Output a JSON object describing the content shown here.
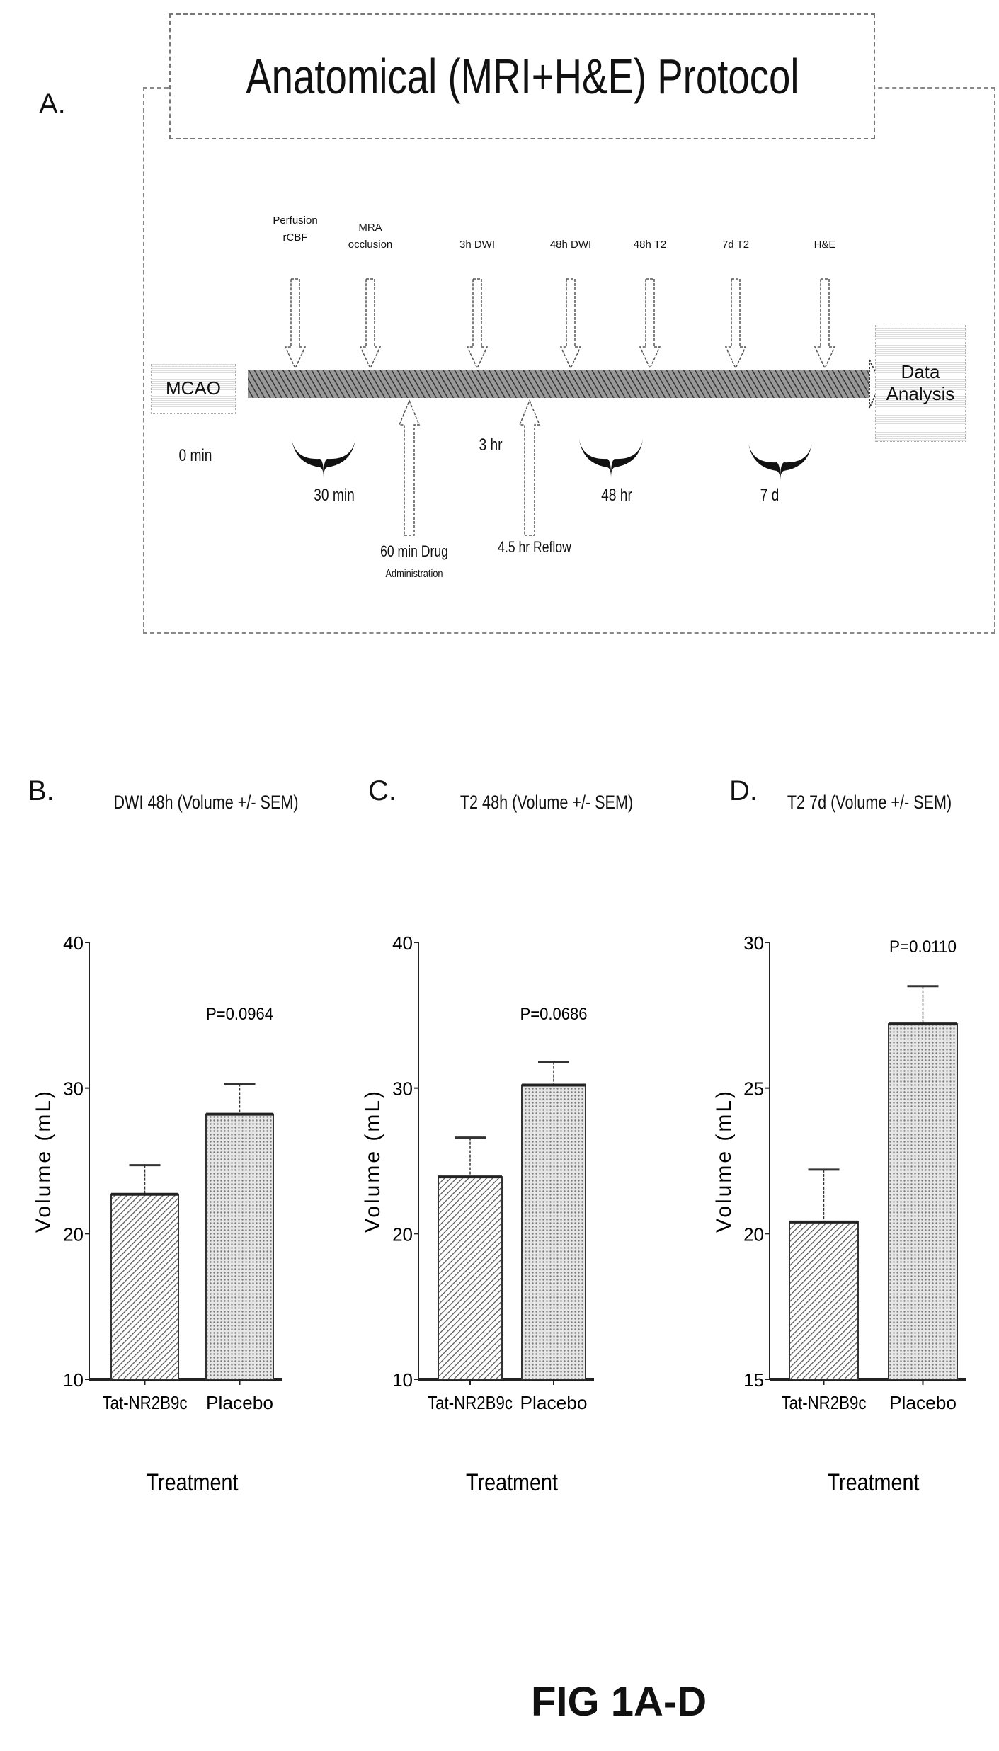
{
  "panel_a": {
    "letter": "A.",
    "title": "Anatomical (MRI+H&E) Protocol",
    "start_box": "MCAO",
    "end_box_line1": "Data",
    "end_box_line2": "Analysis",
    "start_time": "0 min",
    "top_events": [
      {
        "line1": "Perfusion",
        "line2": "rCBF"
      },
      {
        "line1": "MRA",
        "line2": "occlusion"
      },
      {
        "line1": "3h DWI",
        "line2": ""
      },
      {
        "line1": "48h DWI",
        "line2": ""
      },
      {
        "line1": "48h T2",
        "line2": ""
      },
      {
        "line1": "7d T2",
        "line2": ""
      },
      {
        "line1": "H&E",
        "line2": ""
      }
    ],
    "intervals": [
      "30 min",
      "48 hr",
      "7 d"
    ],
    "time_3hr": "3 hr",
    "bottom_events": [
      {
        "line1": "60 min Drug",
        "line2": "Administration"
      },
      {
        "line1": "4.5 hr Reflow",
        "line2": ""
      }
    ]
  },
  "chart_data": [
    {
      "letter": "B.",
      "type": "bar",
      "title": "DWI 48h (Volume +/- SEM)",
      "categories": [
        "Tat-NR2B9c",
        "Placebo"
      ],
      "values": [
        22.7,
        28.2
      ],
      "sem_upper": [
        24.7,
        30.3
      ],
      "ylim": [
        10,
        40
      ],
      "yticks": [
        "10",
        "20",
        "30",
        "40"
      ],
      "ylabel": "Volume (mL)",
      "xlabel": "Treatment",
      "annotation": "P=0.0964"
    },
    {
      "letter": "C.",
      "type": "bar",
      "title": "T2 48h (Volume +/- SEM)",
      "categories": [
        "Tat-NR2B9c",
        "Placebo"
      ],
      "values": [
        23.9,
        30.2
      ],
      "sem_upper": [
        26.6,
        31.8
      ],
      "ylim": [
        10,
        40
      ],
      "yticks": [
        "10",
        "20",
        "30",
        "40"
      ],
      "ylabel": "Volume (mL)",
      "xlabel": "Treatment",
      "annotation": "P=0.0686"
    },
    {
      "letter": "D.",
      "type": "bar",
      "title": "T2 7d (Volume +/- SEM)",
      "categories": [
        "Tat-NR2B9c",
        "Placebo"
      ],
      "values": [
        20.4,
        27.2
      ],
      "sem_upper": [
        22.2,
        28.5
      ],
      "ylim": [
        15,
        30
      ],
      "yticks": [
        "15",
        "20",
        "25",
        "30"
      ],
      "ylabel": "Volume (mL)",
      "xlabel": "Treatment",
      "annotation": "P=0.0110"
    }
  ],
  "figure_label": "FIG 1A-D"
}
